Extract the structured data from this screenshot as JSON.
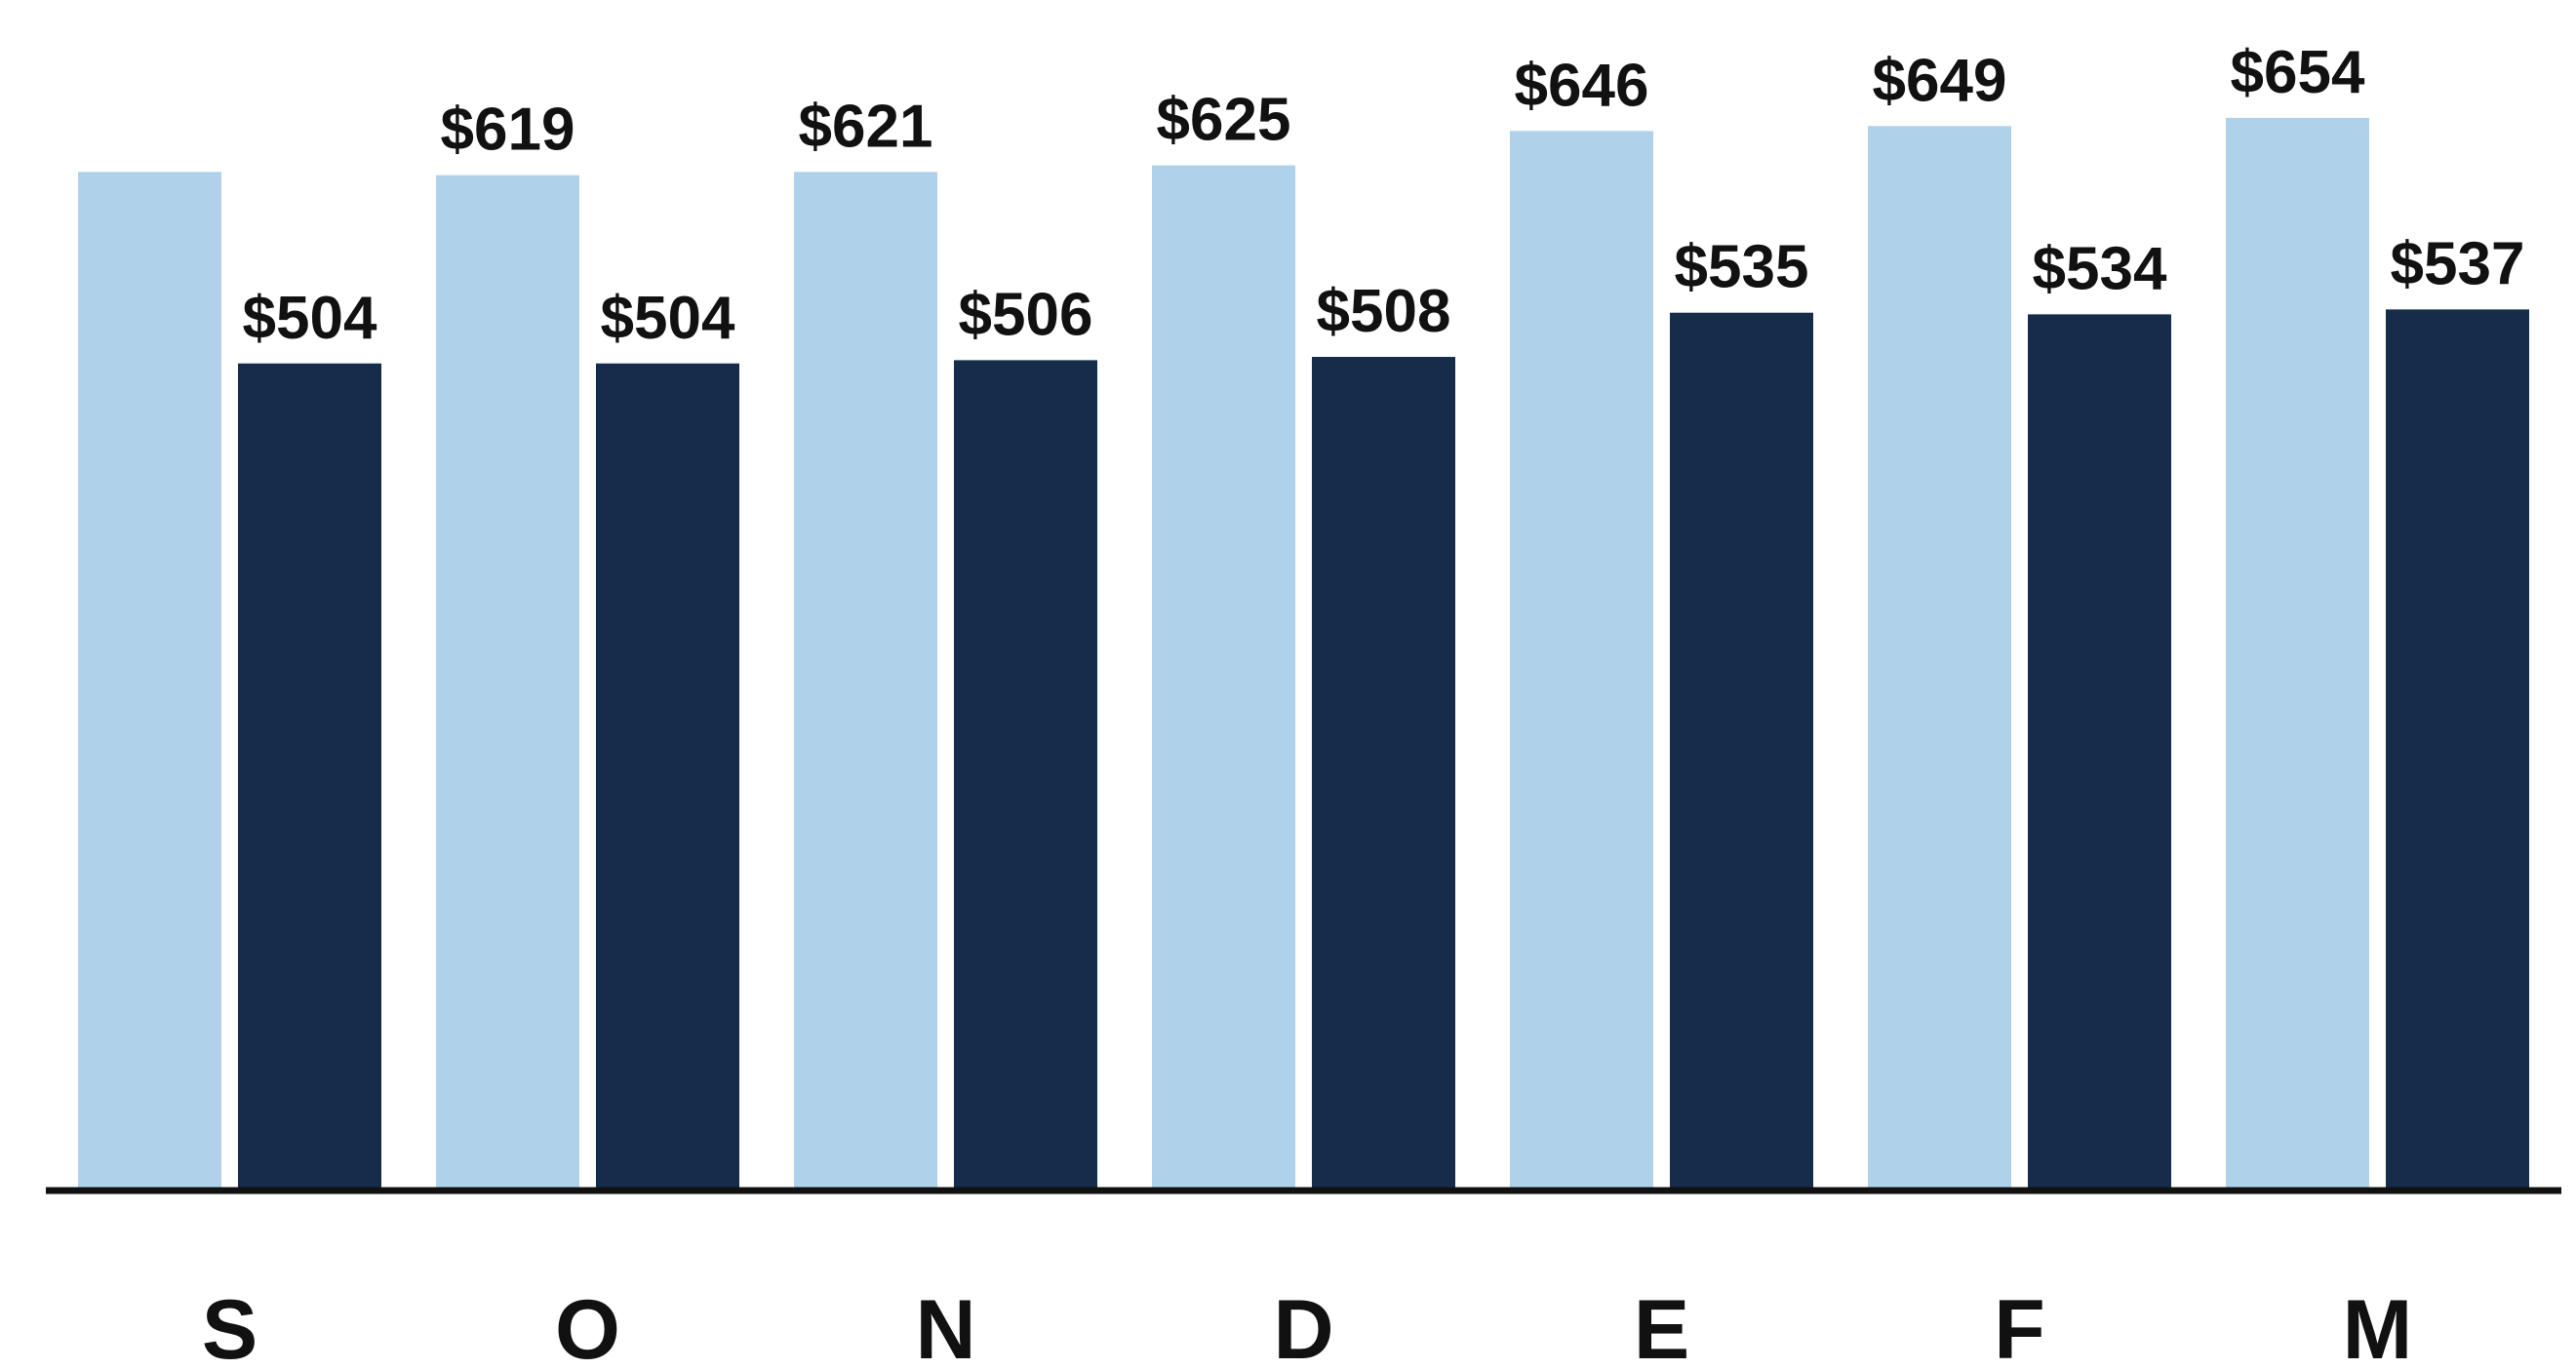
{
  "chart_data": {
    "type": "bar",
    "categories": [
      "S",
      "O",
      "N",
      "D",
      "E",
      "F",
      "M"
    ],
    "series": [
      {
        "color": "#afd2ea",
        "values": [
          621,
          619,
          621,
          625,
          646,
          649,
          654
        ],
        "value_labels": [
          null,
          "$619",
          "$621",
          "$625",
          "$646",
          "$649",
          "$654"
        ]
      },
      {
        "color": "#152c4a",
        "values": [
          504,
          504,
          506,
          508,
          535,
          534,
          537
        ],
        "value_labels": [
          "$504",
          "$504",
          "$506",
          "$508",
          "$535",
          "$534",
          "$537"
        ]
      }
    ],
    "ylim": [
      0,
      726
    ]
  }
}
